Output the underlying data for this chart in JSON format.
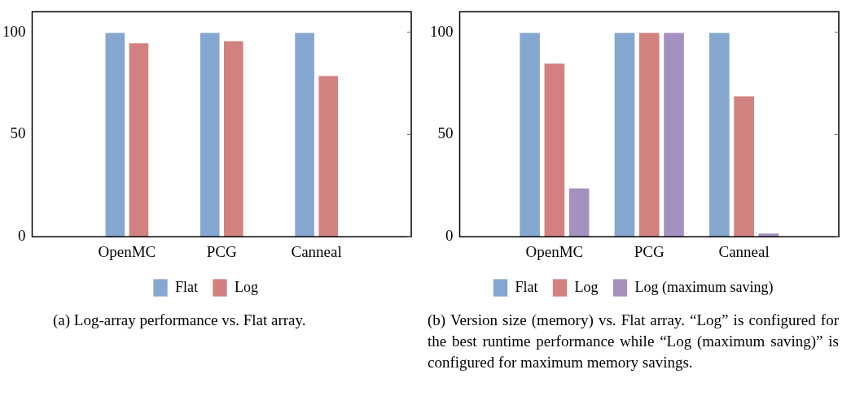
{
  "chart_data": [
    {
      "type": "bar",
      "categories": [
        "OpenMC",
        "PCG",
        "Canneal"
      ],
      "series": [
        {
          "name": "Flat",
          "color": "#86a7cf",
          "values": [
            100,
            100,
            100
          ]
        },
        {
          "name": "Log",
          "color": "#d28080",
          "values": [
            95,
            96,
            79
          ]
        }
      ],
      "ylim": [
        0,
        110
      ],
      "yticks": [
        0,
        50,
        100
      ],
      "grid": false,
      "legend": "bottom",
      "annotations": [
        "(a) Log-array performance vs. Flat array."
      ]
    },
    {
      "type": "bar",
      "categories": [
        "OpenMC",
        "PCG",
        "Canneal"
      ],
      "series": [
        {
          "name": "Flat",
          "color": "#86a7cf",
          "values": [
            100,
            100,
            100
          ]
        },
        {
          "name": "Log",
          "color": "#d28080",
          "values": [
            85,
            100,
            69
          ]
        },
        {
          "name": "Log (maximum saving)",
          "color": "#a591bf",
          "values": [
            24,
            100,
            2
          ]
        }
      ],
      "ylim": [
        0,
        110
      ],
      "yticks": [
        0,
        50,
        100
      ],
      "grid": false,
      "legend": "bottom",
      "annotations": [
        "(b) Version size (memory) vs. Flat array. “Log” is configured for the best runtime performance while “Log (maximum saving)” is configured for maximum memory savings."
      ]
    }
  ]
}
